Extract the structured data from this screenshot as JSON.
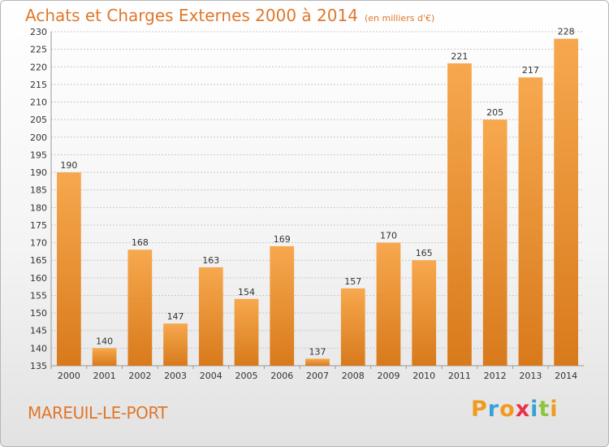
{
  "title": "Achats et Charges Externes 2000 à 2014",
  "title_unit": "(en milliers d'€)",
  "place": "MAREUIL-LE-PORT",
  "brand": {
    "letters": [
      "P",
      "r",
      "o",
      "x",
      "i",
      "t",
      "i"
    ],
    "colors": [
      "#f29a1f",
      "#3aa0d8",
      "#f29a1f",
      "#e8324a",
      "#3aa0d8",
      "#8cc63f",
      "#f29a1f"
    ]
  },
  "colors": {
    "title": "#e0772b",
    "bar_light": "#f7a84e",
    "bar_dark": "#d87a1c",
    "grid": "#c8c8c8"
  },
  "chart_data": {
    "type": "bar",
    "title": "Achats et Charges Externes 2000 à 2014",
    "subtitle": "(en milliers d'€)",
    "xlabel": "",
    "ylabel": "",
    "categories": [
      "2000",
      "2001",
      "2002",
      "2003",
      "2004",
      "2005",
      "2006",
      "2007",
      "2008",
      "2009",
      "2010",
      "2011",
      "2012",
      "2013",
      "2014"
    ],
    "values": [
      190,
      140,
      168,
      147,
      163,
      154,
      169,
      137,
      157,
      170,
      165,
      221,
      205,
      217,
      228
    ],
    "ylim": [
      135,
      230
    ],
    "yticks": [
      135,
      140,
      145,
      150,
      155,
      160,
      165,
      170,
      175,
      180,
      185,
      190,
      195,
      200,
      205,
      210,
      215,
      220,
      225,
      230
    ],
    "grid": true,
    "data_labels": true
  }
}
